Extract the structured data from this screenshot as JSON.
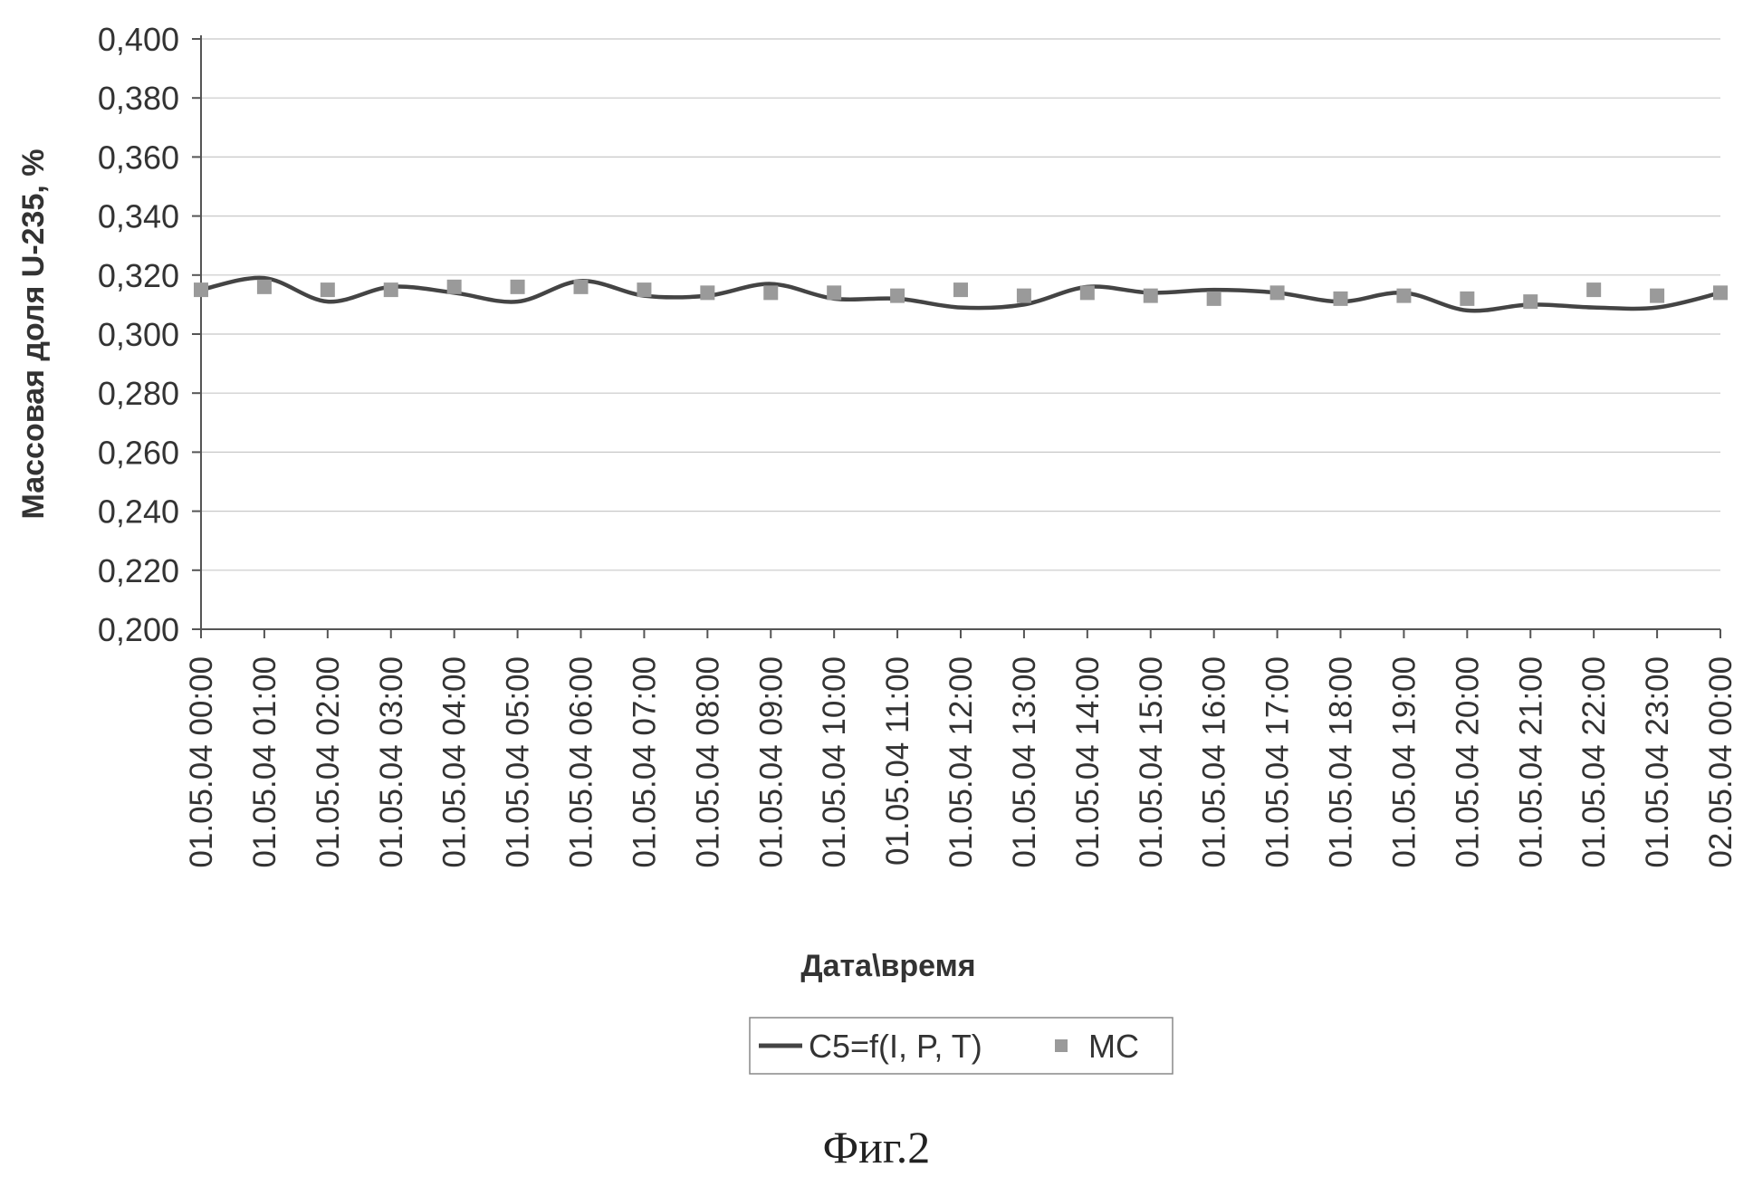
{
  "figure_caption": "Фиг.2",
  "chart_data": {
    "type": "line",
    "title": "",
    "xlabel": "Дата\\время",
    "ylabel": "Массовая доля U-235, %",
    "ylim": [
      0.2,
      0.4
    ],
    "yticks": [
      "0,200",
      "0,220",
      "0,240",
      "0,260",
      "0,280",
      "0,300",
      "0,320",
      "0,340",
      "0,360",
      "0,380",
      "0,400"
    ],
    "grid": true,
    "legend_position": "bottom",
    "categories": [
      "01.05.04 00:00",
      "01.05.04 01:00",
      "01.05.04 02:00",
      "01.05.04 03:00",
      "01.05.04 04:00",
      "01.05.04 05:00",
      "01.05.04 06:00",
      "01.05.04 07:00",
      "01.05.04 08:00",
      "01.05.04 09:00",
      "01.05.04 10:00",
      "01.05.04 11:00",
      "01.05.04 12:00",
      "01.05.04 13:00",
      "01.05.04 14:00",
      "01.05.04 15:00",
      "01.05.04 16:00",
      "01.05.04 17:00",
      "01.05.04 18:00",
      "01.05.04 19:00",
      "01.05.04 20:00",
      "01.05.04 21:00",
      "01.05.04 22:00",
      "01.05.04 23:00",
      "02.05.04 00:00"
    ],
    "series": [
      {
        "name": "C5=f(I, P, T)",
        "kind": "line",
        "color": "#444444",
        "values": [
          0.315,
          0.319,
          0.311,
          0.316,
          0.314,
          0.311,
          0.318,
          0.313,
          0.313,
          0.317,
          0.312,
          0.312,
          0.309,
          0.31,
          0.316,
          0.314,
          0.315,
          0.314,
          0.311,
          0.314,
          0.308,
          0.31,
          0.309,
          0.309,
          0.314
        ]
      },
      {
        "name": "МС",
        "kind": "markers",
        "color": "#9a9a9a",
        "values": [
          0.315,
          0.316,
          0.315,
          0.315,
          0.316,
          0.316,
          0.316,
          0.315,
          0.314,
          0.314,
          0.314,
          0.313,
          0.315,
          0.313,
          0.314,
          0.313,
          0.312,
          0.314,
          0.312,
          0.313,
          0.312,
          0.311,
          0.315,
          0.313,
          0.314
        ]
      }
    ]
  }
}
